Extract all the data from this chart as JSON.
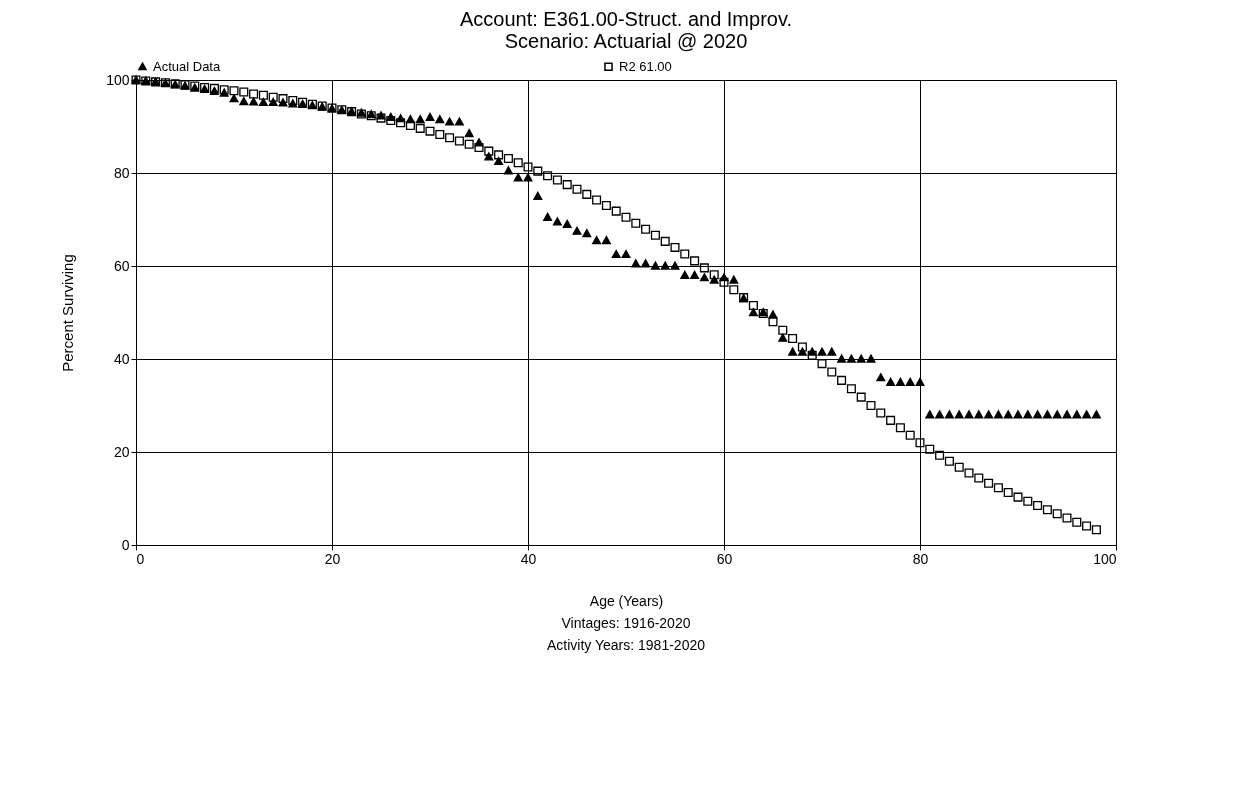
{
  "chart_data": {
    "type": "scatter",
    "title": [
      "Account: E361.00-Struct. and Improv.",
      "Scenario: Actuarial @ 2020"
    ],
    "xlabel": "Age (Years)",
    "ylabel": "Percent Surviving",
    "annotations": [
      "Vintages: 1916-2020",
      "Activity Years: 1981-2020"
    ],
    "x": [
      0,
      1,
      2,
      3,
      4,
      5,
      6,
      7,
      8,
      9,
      10,
      11,
      12,
      13,
      14,
      15,
      16,
      17,
      18,
      19,
      20,
      21,
      22,
      23,
      24,
      25,
      26,
      27,
      28,
      29,
      30,
      31,
      32,
      33,
      34,
      35,
      36,
      37,
      38,
      39,
      40,
      41,
      42,
      43,
      44,
      45,
      46,
      47,
      48,
      49,
      50,
      51,
      52,
      53,
      54,
      55,
      56,
      57,
      58,
      59,
      60,
      61,
      62,
      63,
      64,
      65,
      66,
      67,
      68,
      69,
      70,
      71,
      72,
      73,
      74,
      75,
      76,
      77,
      78,
      79,
      80,
      81,
      82,
      83,
      84,
      85,
      86,
      87,
      88,
      89,
      90,
      91,
      92,
      93,
      94,
      95,
      96,
      97,
      98
    ],
    "series": [
      {
        "name": "Actual Data",
        "color": "#000000",
        "marker": "triangle",
        "values": [
          100,
          99.8,
          99.6,
          99.3,
          99.0,
          98.7,
          98.3,
          98.0,
          97.6,
          97.2,
          96.0,
          95.4,
          95.3,
          95.2,
          95.2,
          95.1,
          94.9,
          94.8,
          94.5,
          94.2,
          93.8,
          93.5,
          93.2,
          92.9,
          92.6,
          92.3,
          92.0,
          91.7,
          91.5,
          91.5,
          92.0,
          91.5,
          91.0,
          91.0,
          88.5,
          86.5,
          83.5,
          82.5,
          80.5,
          79.0,
          79.0,
          75.0,
          70.5,
          69.5,
          69.0,
          67.5,
          67.0,
          65.5,
          65.5,
          62.5,
          62.5,
          60.5,
          60.5,
          60.0,
          60.0,
          60.0,
          58.0,
          58.0,
          57.5,
          57.0,
          57.5,
          57.0,
          53.0,
          50.0,
          50.0,
          49.5,
          44.5,
          41.5,
          41.5,
          41.5,
          41.5,
          41.5,
          40.0,
          40.0,
          40.0,
          40.0,
          36.0,
          35.0,
          35.0,
          35.0,
          35.0,
          28,
          28,
          28,
          28,
          28,
          28,
          28,
          28,
          28,
          28,
          28,
          28,
          28,
          28,
          28,
          28,
          28,
          28
        ]
      },
      {
        "name": "R2 61.00",
        "color": "#000000",
        "marker": "square",
        "values": [
          100,
          99.8,
          99.6,
          99.4,
          99.2,
          99.0,
          98.7,
          98.4,
          98.2,
          97.9,
          97.7,
          97.4,
          97.0,
          96.7,
          96.3,
          96.0,
          95.6,
          95.2,
          94.8,
          94.4,
          94.0,
          93.6,
          93.2,
          92.7,
          92.3,
          91.8,
          91.3,
          90.8,
          90.2,
          89.6,
          89.0,
          88.3,
          87.6,
          86.9,
          86.2,
          85.5,
          84.7,
          83.9,
          83.1,
          82.2,
          81.3,
          80.4,
          79.4,
          78.5,
          77.5,
          76.5,
          75.4,
          74.2,
          73.0,
          71.8,
          70.5,
          69.2,
          67.9,
          66.6,
          65.3,
          64.0,
          62.6,
          61.1,
          59.6,
          58.1,
          56.5,
          54.9,
          53.2,
          51.5,
          49.8,
          48.0,
          46.2,
          44.4,
          42.6,
          40.8,
          39.0,
          37.2,
          35.4,
          33.6,
          31.8,
          30.0,
          28.4,
          26.8,
          25.2,
          23.6,
          22.0,
          20.6,
          19.3,
          18.0,
          16.7,
          15.5,
          14.4,
          13.3,
          12.3,
          11.3,
          10.3,
          9.4,
          8.5,
          7.6,
          6.7,
          5.8,
          4.9,
          4.1,
          3.3
        ]
      }
    ],
    "xlim": [
      0,
      100
    ],
    "xticks": [
      0,
      20,
      40,
      60,
      80,
      100
    ],
    "ylim": [
      0,
      100
    ],
    "yticks": [
      0,
      20,
      40,
      60,
      80,
      100
    ],
    "grid": true,
    "legend": "top"
  }
}
